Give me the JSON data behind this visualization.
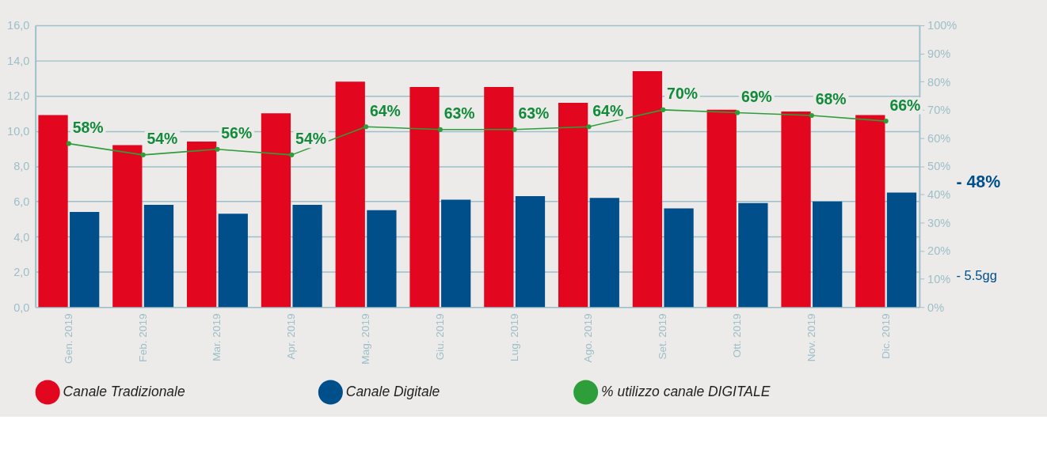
{
  "chart_data": {
    "type": "bar",
    "categories": [
      "Gen. 2019",
      "Feb. 2019",
      "Mar. 2019",
      "Apr. 2019",
      "Mag. 2019",
      "Giu. 2019",
      "Lug. 2019",
      "Ago. 2019",
      "Set. 2019",
      "Ott. 2019",
      "Nov. 2019",
      "Dic. 2019"
    ],
    "series": [
      {
        "name": "Canale Tradizionale",
        "color": "#e2071f",
        "values": [
          10.9,
          9.2,
          9.4,
          11.0,
          12.8,
          12.5,
          12.5,
          11.6,
          13.4,
          11.2,
          11.1,
          10.9
        ]
      },
      {
        "name": "Canale Digitale",
        "color": "#004f8b",
        "values": [
          5.4,
          5.8,
          5.3,
          5.8,
          5.5,
          6.1,
          6.3,
          6.2,
          5.6,
          5.9,
          6.0,
          6.5
        ]
      },
      {
        "name": "% utilizzo canale DIGITALE",
        "type": "line",
        "axis": "y2",
        "marker": "circle",
        "color": "#2e9e3a",
        "values": [
          58,
          54,
          56,
          54,
          64,
          63,
          63,
          64,
          70,
          69,
          68,
          66
        ],
        "value_labels": [
          "58%",
          "54%",
          "56%",
          "54%",
          "64%",
          "63%",
          "63%",
          "64%",
          "70%",
          "69%",
          "68%",
          "66%"
        ]
      }
    ],
    "ylim": [
      0,
      16
    ],
    "yticks": [
      {
        "value": 0,
        "label": "0,0"
      },
      {
        "value": 2,
        "label": "2,0"
      },
      {
        "value": 4,
        "label": "4,0"
      },
      {
        "value": 6,
        "label": "6,0"
      },
      {
        "value": 8,
        "label": "8,0"
      },
      {
        "value": 10,
        "label": "10,0"
      },
      {
        "value": 12,
        "label": "12,0"
      },
      {
        "value": 14,
        "label": "14,0"
      },
      {
        "value": 16,
        "label": "16,0"
      }
    ],
    "y2lim": [
      0,
      100
    ],
    "y2ticks": [
      {
        "value": 0,
        "label": "0%"
      },
      {
        "value": 10,
        "label": "10%"
      },
      {
        "value": 20,
        "label": "20%"
      },
      {
        "value": 30,
        "label": "30%"
      },
      {
        "value": 40,
        "label": "40%"
      },
      {
        "value": 50,
        "label": "50%"
      },
      {
        "value": 60,
        "label": "60%"
      },
      {
        "value": 70,
        "label": "70%"
      },
      {
        "value": 80,
        "label": "80%"
      },
      {
        "value": 90,
        "label": "90%"
      },
      {
        "value": 100,
        "label": "100%"
      }
    ],
    "grid": "y",
    "legend": "bottom",
    "annotations": [
      "- 48%",
      "- 5.5gg"
    ]
  }
}
